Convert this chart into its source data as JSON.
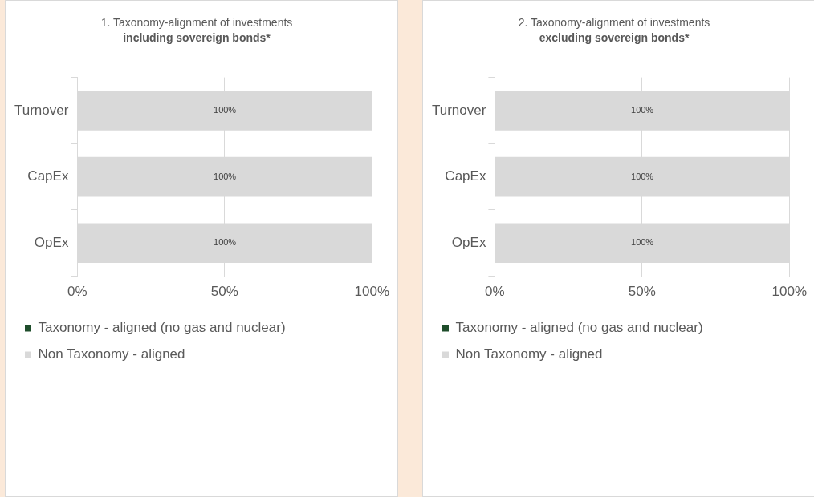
{
  "chart_data": [
    {
      "type": "bar",
      "orientation": "horizontal",
      "stacked": true,
      "title": "1. Taxonomy-alignment of investments",
      "subtitle": "including sovereign bonds*",
      "categories": [
        "Turnover",
        "CapEx",
        "OpEx"
      ],
      "series": [
        {
          "name": "Taxonomy - aligned (no gas and nuclear)",
          "color": "#1e4d2b",
          "values": [
            0,
            0,
            0
          ]
        },
        {
          "name": "Non Taxonomy - aligned",
          "color": "#d9d9d9",
          "values": [
            100,
            100,
            100
          ],
          "value_labels": [
            "100%",
            "100%",
            "100%"
          ]
        }
      ],
      "xlim": [
        0,
        100
      ],
      "xticks": [
        {
          "value": 0,
          "label": "0%"
        },
        {
          "value": 50,
          "label": "50%"
        },
        {
          "value": 100,
          "label": "100%"
        }
      ],
      "grid": "x",
      "legend": "bottom"
    },
    {
      "type": "bar",
      "orientation": "horizontal",
      "stacked": true,
      "title": "2. Taxonomy-alignment of investments",
      "subtitle": "excluding sovereign bonds*",
      "categories": [
        "Turnover",
        "CapEx",
        "OpEx"
      ],
      "series": [
        {
          "name": "Taxonomy - aligned (no gas and nuclear)",
          "color": "#1e4d2b",
          "values": [
            0,
            0,
            0
          ]
        },
        {
          "name": "Non Taxonomy - aligned",
          "color": "#d9d9d9",
          "values": [
            100,
            100,
            100
          ],
          "value_labels": [
            "100%",
            "100%",
            "100%"
          ]
        }
      ],
      "xlim": [
        0,
        100
      ],
      "xticks": [
        {
          "value": 0,
          "label": "0%"
        },
        {
          "value": 50,
          "label": "50%"
        },
        {
          "value": 100,
          "label": "100%"
        }
      ],
      "grid": "x",
      "legend": "bottom"
    }
  ]
}
